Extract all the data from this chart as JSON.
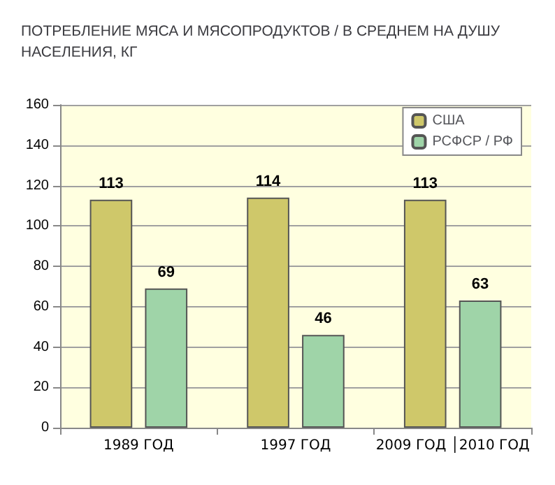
{
  "chart_data": {
    "type": "bar",
    "title": "ПОТРЕБЛЕНИЕ МЯСА И МЯСОПРОДУКТОВ / В СРЕДНЕМ НА ДУШУ\nНАСЕЛЕНИЯ, КГ",
    "categories": [
      "1989 ГОД",
      "1997 ГОД",
      "2009 ГОД │2010 ГОД"
    ],
    "series": [
      {
        "name": "США",
        "color": "#cfc86a",
        "values": [
          113,
          114,
          113
        ]
      },
      {
        "name": "РСФСР / РФ",
        "color": "#9fd4a8",
        "values": [
          69,
          46,
          63
        ]
      }
    ],
    "ylim": [
      0,
      160
    ],
    "yticks": [
      0,
      20,
      40,
      60,
      80,
      100,
      120,
      140,
      160
    ],
    "grid": "y",
    "legend": "top right",
    "data_labels": true
  }
}
